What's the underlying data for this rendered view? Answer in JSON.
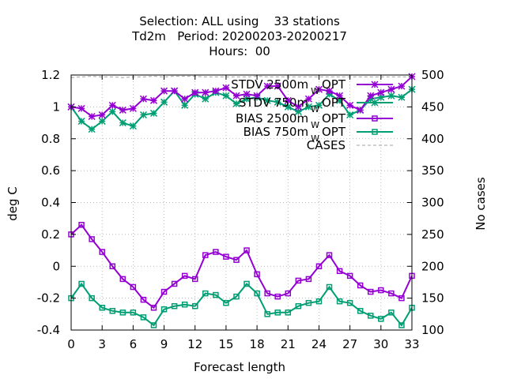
{
  "chart_data": {
    "type": "line",
    "title_lines": [
      "Selection: ALL using    33 stations",
      "Td2m   Period: 20200203-20200217",
      "Hours:  00"
    ],
    "xlabel": "Forecast length",
    "ylabel": "deg C",
    "y2label": "No cases",
    "xlim": [
      0,
      33
    ],
    "ylim": [
      -0.4,
      1.2
    ],
    "y2lim": [
      100,
      500
    ],
    "xticks": [
      0,
      3,
      6,
      9,
      12,
      15,
      18,
      21,
      24,
      27,
      30,
      33
    ],
    "yticks": [
      -0.4,
      -0.2,
      0,
      0.2,
      0.4,
      0.6,
      0.8,
      1,
      1.2
    ],
    "ytick_labels": [
      "-0.4",
      "-0.2",
      "0",
      "0.2",
      "0.4",
      "0.6",
      "0.8",
      "1",
      "1.2"
    ],
    "y2ticks": [
      100,
      150,
      200,
      250,
      300,
      350,
      400,
      450,
      500
    ],
    "grid": true,
    "legend_position": "top-right",
    "x": [
      0,
      1,
      2,
      3,
      4,
      5,
      6,
      7,
      8,
      9,
      10,
      11,
      12,
      13,
      14,
      15,
      16,
      17,
      18,
      19,
      20,
      21,
      22,
      23,
      24,
      25,
      26,
      27,
      28,
      29,
      30,
      31,
      32,
      33
    ],
    "series": [
      {
        "name": "STDV 2500m_W_OPT",
        "legend_parts": [
          "STDV 2500m",
          "W",
          "OPT"
        ],
        "color": "#9400d3",
        "marker": "star",
        "axis": "y",
        "values": [
          1.0,
          0.99,
          0.94,
          0.95,
          1.01,
          0.98,
          0.99,
          1.05,
          1.04,
          1.1,
          1.1,
          1.05,
          1.09,
          1.09,
          1.1,
          1.12,
          1.07,
          1.08,
          1.07,
          1.13,
          1.13,
          1.04,
          1.0,
          1.05,
          1.11,
          1.1,
          1.07,
          1.01,
          0.98,
          1.07,
          1.09,
          1.11,
          1.13,
          1.19
        ]
      },
      {
        "name": "STDV 750m_W_OPT",
        "legend_parts": [
          "STDV 750m",
          "W",
          "OPT"
        ],
        "color": "#009e73",
        "marker": "star",
        "axis": "y",
        "values": [
          1.0,
          0.91,
          0.86,
          0.91,
          0.97,
          0.9,
          0.88,
          0.95,
          0.96,
          1.03,
          1.1,
          1.01,
          1.08,
          1.05,
          1.09,
          1.07,
          1.02,
          1.05,
          1.06,
          1.04,
          1.03,
          1.0,
          0.97,
          1.0,
          1.01,
          1.08,
          1.04,
          0.95,
          0.98,
          1.05,
          1.06,
          1.07,
          1.06,
          1.11
        ]
      },
      {
        "name": "BIAS 2500m_W_OPT",
        "legend_parts": [
          "BIAS 2500m",
          "W",
          "OPT"
        ],
        "color": "#9400d3",
        "marker": "square",
        "axis": "y",
        "values": [
          0.2,
          0.26,
          0.17,
          0.09,
          0.0,
          -0.08,
          -0.13,
          -0.21,
          -0.26,
          -0.16,
          -0.11,
          -0.06,
          -0.08,
          0.07,
          0.09,
          0.06,
          0.04,
          0.1,
          -0.05,
          -0.17,
          -0.19,
          -0.17,
          -0.09,
          -0.08,
          0.0,
          0.07,
          -0.03,
          -0.06,
          -0.12,
          -0.16,
          -0.15,
          -0.17,
          -0.2,
          -0.06
        ]
      },
      {
        "name": "BIAS 750m_W_OPT",
        "legend_parts": [
          "BIAS 750m",
          "W",
          "OPT"
        ],
        "color": "#009e73",
        "marker": "square",
        "axis": "y",
        "values": [
          -0.2,
          -0.11,
          -0.2,
          -0.26,
          -0.28,
          -0.29,
          -0.29,
          -0.32,
          -0.37,
          -0.27,
          -0.25,
          -0.24,
          -0.25,
          -0.17,
          -0.18,
          -0.23,
          -0.19,
          -0.11,
          -0.17,
          -0.3,
          -0.29,
          -0.29,
          -0.25,
          -0.23,
          -0.22,
          -0.13,
          -0.22,
          -0.23,
          -0.28,
          -0.31,
          -0.33,
          -0.29,
          -0.37,
          -0.26
        ]
      },
      {
        "name": "CASES",
        "legend_parts": [
          "CASES"
        ],
        "color": "#a0a0a0",
        "marker": "none",
        "dashed": true,
        "axis": "y2",
        "values": [
          496,
          497,
          498,
          497,
          497,
          496,
          497,
          497,
          498,
          497,
          498,
          498,
          498,
          497,
          497,
          497,
          497,
          497,
          498,
          497,
          497,
          497,
          497,
          497,
          497,
          497,
          497,
          497,
          497,
          497,
          497,
          497,
          497,
          497
        ]
      }
    ]
  }
}
